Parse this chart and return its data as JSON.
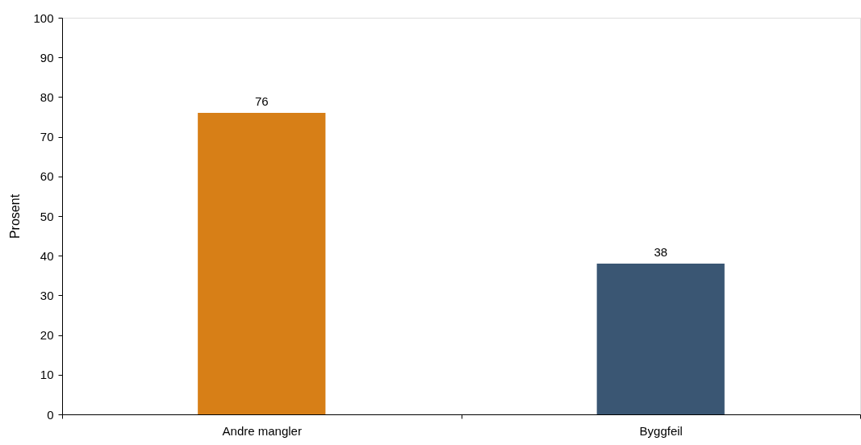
{
  "chart_data": {
    "type": "bar",
    "ylabel": "Prosent",
    "categories": [
      "Andre mangler",
      "Byggfeil"
    ],
    "values": [
      76,
      38
    ],
    "colors": [
      "#d77f17",
      "#3a5673"
    ],
    "ylim": [
      0,
      100
    ],
    "yticks": [
      0,
      10,
      20,
      30,
      40,
      50,
      60,
      70,
      80,
      90,
      100
    ],
    "data_labels": true,
    "grid": false
  }
}
